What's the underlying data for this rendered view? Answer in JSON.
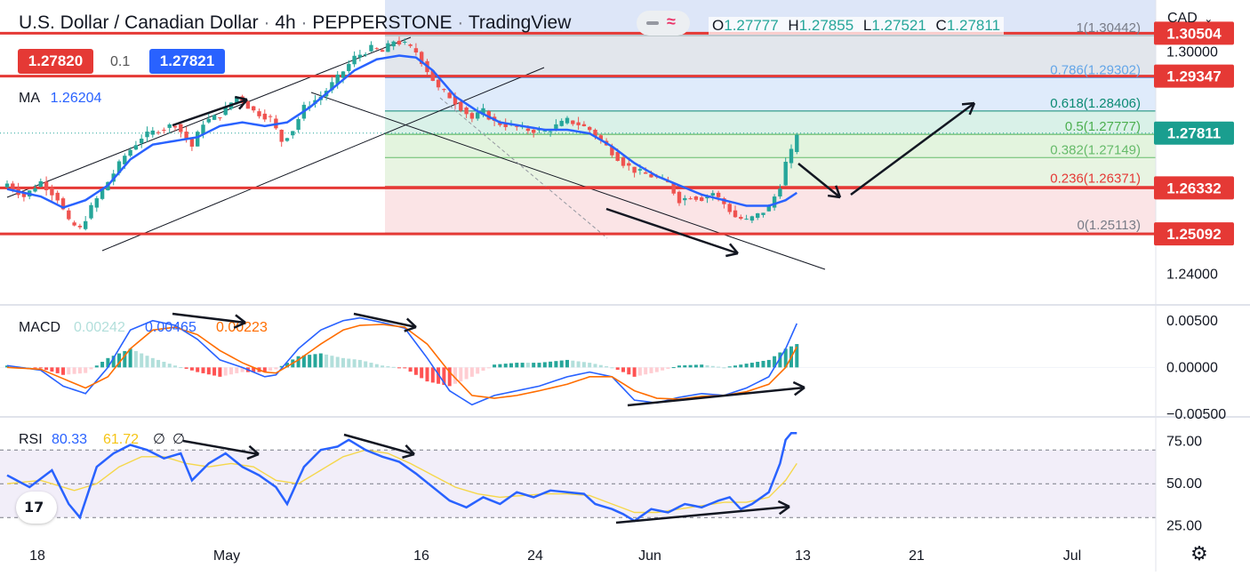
{
  "header": {
    "symbol": "U.S. Dollar / Canadian Dollar",
    "interval": "4h",
    "exchange": "PEPPERSTONE",
    "platform": "TradingView",
    "ohlc": {
      "o_label": "O",
      "o": "1.27777",
      "h_label": "H",
      "h": "1.27855",
      "l_label": "L",
      "l": "1.27521",
      "c_label": "C",
      "c": "1.27811"
    },
    "sell_price": "1.27820",
    "spread": "0.1",
    "buy_price": "1.27821",
    "ma_label": "MA",
    "ma_value": "1.26204",
    "currency": "CAD",
    "currency_icon": "chevron-down-icon"
  },
  "colors": {
    "up": "#26a69a",
    "down": "#ef5350",
    "ma": "#2962ff",
    "macd": "#2962ff",
    "signal": "#ff6d00",
    "rsi": "#2962ff",
    "rsi_ma": "#f5d74b",
    "level": "#e53935",
    "axis_badge_red": "#e53935",
    "axis_badge_green": "#1a9e8f",
    "buy_badge": "#2962ff"
  },
  "chart_data": [
    {
      "type": "candlestick",
      "title": "U.S. Dollar / Canadian Dollar · 4h · PEPPERSTONE",
      "x_ticks": [
        "18",
        "May",
        "16",
        "24",
        "Jun",
        "13",
        "21",
        "Jul"
      ],
      "y_ticks": [
        "1.30000",
        "1.24000"
      ],
      "ylim": [
        1.232,
        1.314
      ],
      "close_path": [
        [
          0,
          1.2645
        ],
        [
          3,
          1.261
        ],
        [
          6,
          1.265
        ],
        [
          9,
          1.2605
        ],
        [
          11,
          1.254
        ],
        [
          13,
          1.2522
        ],
        [
          15,
          1.258
        ],
        [
          18,
          1.265
        ],
        [
          21,
          1.272
        ],
        [
          24,
          1.277
        ],
        [
          27,
          1.279
        ],
        [
          30,
          1.2805
        ],
        [
          33,
          1.2745
        ],
        [
          35,
          1.281
        ],
        [
          38,
          1.283
        ],
        [
          41,
          1.288
        ],
        [
          44,
          1.284
        ],
        [
          47,
          1.282
        ],
        [
          49,
          1.276
        ],
        [
          51,
          1.279
        ],
        [
          53,
          1.285
        ],
        [
          56,
          1.288
        ],
        [
          59,
          1.293
        ],
        [
          62,
          1.2985
        ],
        [
          65,
          1.301
        ],
        [
          67,
          1.3
        ],
        [
          69,
          1.303
        ],
        [
          71,
          1.302
        ],
        [
          73,
          1.3
        ],
        [
          75,
          1.295
        ],
        [
          77,
          1.29
        ],
        [
          79,
          1.288
        ],
        [
          81,
          1.285
        ],
        [
          83,
          1.282
        ],
        [
          85,
          1.284
        ],
        [
          87,
          1.281
        ],
        [
          90,
          1.28
        ],
        [
          93,
          1.279
        ],
        [
          96,
          1.2785
        ],
        [
          98,
          1.28
        ],
        [
          100,
          1.2815
        ],
        [
          102,
          1.2805
        ],
        [
          104,
          1.279
        ],
        [
          106,
          1.276
        ],
        [
          108,
          1.273
        ],
        [
          110,
          1.27
        ],
        [
          112,
          1.268
        ],
        [
          114,
          1.267
        ],
        [
          116,
          1.266
        ],
        [
          118,
          1.2645
        ],
        [
          120,
          1.26
        ],
        [
          122,
          1.261
        ],
        [
          124,
          1.2605
        ],
        [
          126,
          1.262
        ],
        [
          128,
          1.259
        ],
        [
          130,
          1.2555
        ],
        [
          132,
          1.2545
        ],
        [
          134,
          1.256
        ],
        [
          136,
          1.258
        ],
        [
          138,
          1.264
        ],
        [
          139,
          1.27
        ],
        [
          140,
          1.273
        ],
        [
          141,
          1.2781
        ]
      ],
      "ma_path": [
        [
          0,
          1.263
        ],
        [
          6,
          1.261
        ],
        [
          10,
          1.258
        ],
        [
          14,
          1.26
        ],
        [
          18,
          1.264
        ],
        [
          22,
          1.271
        ],
        [
          26,
          1.275
        ],
        [
          30,
          1.276
        ],
        [
          34,
          1.277
        ],
        [
          38,
          1.28
        ],
        [
          42,
          1.281
        ],
        [
          46,
          1.28
        ],
        [
          50,
          1.281
        ],
        [
          54,
          1.285
        ],
        [
          58,
          1.29
        ],
        [
          62,
          1.295
        ],
        [
          66,
          1.298
        ],
        [
          70,
          1.299
        ],
        [
          73,
          1.2985
        ],
        [
          76,
          1.295
        ],
        [
          80,
          1.288
        ],
        [
          84,
          1.284
        ],
        [
          88,
          1.281
        ],
        [
          92,
          1.28
        ],
        [
          96,
          1.279
        ],
        [
          100,
          1.279
        ],
        [
          104,
          1.278
        ],
        [
          108,
          1.2745
        ],
        [
          112,
          1.27
        ],
        [
          116,
          1.2665
        ],
        [
          120,
          1.264
        ],
        [
          124,
          1.2615
        ],
        [
          128,
          1.26
        ],
        [
          132,
          1.2585
        ],
        [
          136,
          1.2585
        ],
        [
          139,
          1.26
        ],
        [
          141,
          1.262
        ]
      ],
      "ma_last": "1.26204",
      "levels": [
        {
          "label": "1.30504",
          "value": 1.30504
        },
        {
          "label": "1.29347",
          "value": 1.29347
        },
        {
          "label": "1.26332",
          "value": 1.26332
        },
        {
          "label": "1.25092",
          "value": 1.25092
        }
      ],
      "fibonacci": [
        {
          "label": "1(1.30442)",
          "value": 1.30442,
          "fill": "#dfe3ea"
        },
        {
          "label": "0.786(1.29302)",
          "value": 1.29302,
          "fill": "#dbe9fb",
          "text": "#64a6e8"
        },
        {
          "label": "0.618(1.28406)",
          "value": 1.28406,
          "fill": "#d5efe6",
          "text": "#0b8a73"
        },
        {
          "label": "0.5(1.27777)",
          "value": 1.27777,
          "fill": "#e0f3da",
          "text": "#4caf50"
        },
        {
          "label": "0.382(1.27149)",
          "value": 1.27149,
          "fill": "#e6f3df",
          "text": "#66bb6a"
        },
        {
          "label": "0.236(1.26371)",
          "value": 1.26371,
          "fill": "#fbe1e3",
          "text": "#e53935"
        },
        {
          "label": "0(1.25113)",
          "value": 1.25113,
          "fill": "#fbe1e3",
          "text": "#787b86"
        }
      ],
      "last_price": "1.27811",
      "last_value": 1.27811
    },
    {
      "type": "line",
      "name": "MACD",
      "legend": [
        "MACD",
        "0.00242",
        "0.00465",
        "0.00223"
      ],
      "y_ticks": [
        "0.00500",
        "0.00000",
        "−0.00500"
      ],
      "ylim": [
        -0.0052,
        0.0065
      ],
      "macd": [
        [
          0,
          0.0002
        ],
        [
          6,
          -0.0003
        ],
        [
          10,
          -0.002
        ],
        [
          14,
          -0.0028
        ],
        [
          18,
          0.0
        ],
        [
          22,
          0.004
        ],
        [
          26,
          0.005
        ],
        [
          30,
          0.0045
        ],
        [
          34,
          0.003
        ],
        [
          38,
          0.0008
        ],
        [
          42,
          0.0
        ],
        [
          46,
          -0.001
        ],
        [
          48,
          -0.0008
        ],
        [
          52,
          0.002
        ],
        [
          56,
          0.004
        ],
        [
          60,
          0.005
        ],
        [
          63,
          0.0053
        ],
        [
          67,
          0.0048
        ],
        [
          71,
          0.0042
        ],
        [
          75,
          0.001
        ],
        [
          79,
          -0.0025
        ],
        [
          83,
          -0.004
        ],
        [
          87,
          -0.003
        ],
        [
          91,
          -0.0025
        ],
        [
          95,
          -0.002
        ],
        [
          100,
          -0.001
        ],
        [
          104,
          -0.0005
        ],
        [
          108,
          -0.001
        ],
        [
          112,
          -0.0035
        ],
        [
          116,
          -0.0038
        ],
        [
          120,
          -0.0032
        ],
        [
          124,
          -0.0028
        ],
        [
          128,
          -0.003
        ],
        [
          132,
          -0.0022
        ],
        [
          136,
          -0.001
        ],
        [
          139,
          0.002
        ],
        [
          141,
          0.0047
        ]
      ],
      "signal": [
        [
          0,
          0.0
        ],
        [
          6,
          -0.0002
        ],
        [
          10,
          -0.0012
        ],
        [
          14,
          -0.0022
        ],
        [
          18,
          -0.001
        ],
        [
          22,
          0.002
        ],
        [
          26,
          0.004
        ],
        [
          30,
          0.0043
        ],
        [
          34,
          0.0035
        ],
        [
          38,
          0.0018
        ],
        [
          42,
          0.0005
        ],
        [
          46,
          -0.0005
        ],
        [
          48,
          -0.0006
        ],
        [
          52,
          0.0008
        ],
        [
          56,
          0.0025
        ],
        [
          60,
          0.004
        ],
        [
          63,
          0.0045
        ],
        [
          67,
          0.0046
        ],
        [
          71,
          0.0043
        ],
        [
          75,
          0.0025
        ],
        [
          79,
          -0.0005
        ],
        [
          83,
          -0.003
        ],
        [
          87,
          -0.0033
        ],
        [
          91,
          -0.003
        ],
        [
          95,
          -0.0025
        ],
        [
          100,
          -0.0018
        ],
        [
          104,
          -0.001
        ],
        [
          108,
          -0.001
        ],
        [
          112,
          -0.0025
        ],
        [
          116,
          -0.0033
        ],
        [
          120,
          -0.0034
        ],
        [
          124,
          -0.0031
        ],
        [
          128,
          -0.003
        ],
        [
          132,
          -0.0026
        ],
        [
          136,
          -0.0018
        ],
        [
          139,
          0.0
        ],
        [
          141,
          0.0022
        ]
      ]
    },
    {
      "type": "line",
      "name": "RSI",
      "legend": [
        "RSI",
        "80.33",
        "61.72",
        "∅",
        "∅"
      ],
      "y_ticks": [
        "75.00",
        "50.00",
        "25.00"
      ],
      "ylim": [
        18,
        88
      ],
      "upper": 70,
      "middle": 50,
      "lower": 30,
      "rsi": [
        [
          0,
          55
        ],
        [
          4,
          48
        ],
        [
          8,
          58
        ],
        [
          11,
          38
        ],
        [
          13,
          30
        ],
        [
          16,
          60
        ],
        [
          19,
          68
        ],
        [
          22,
          73
        ],
        [
          25,
          70
        ],
        [
          28,
          65
        ],
        [
          31,
          68
        ],
        [
          33,
          52
        ],
        [
          36,
          62
        ],
        [
          39,
          68
        ],
        [
          42,
          60
        ],
        [
          45,
          55
        ],
        [
          48,
          48
        ],
        [
          50,
          38
        ],
        [
          53,
          60
        ],
        [
          56,
          70
        ],
        [
          59,
          72
        ],
        [
          61,
          76
        ],
        [
          64,
          70
        ],
        [
          67,
          66
        ],
        [
          70,
          63
        ],
        [
          73,
          56
        ],
        [
          76,
          48
        ],
        [
          79,
          40
        ],
        [
          82,
          36
        ],
        [
          85,
          42
        ],
        [
          88,
          38
        ],
        [
          91,
          45
        ],
        [
          94,
          42
        ],
        [
          97,
          46
        ],
        [
          100,
          45
        ],
        [
          103,
          44
        ],
        [
          105,
          38
        ],
        [
          108,
          35
        ],
        [
          110,
          32
        ],
        [
          112,
          28
        ],
        [
          115,
          35
        ],
        [
          118,
          33
        ],
        [
          121,
          38
        ],
        [
          124,
          36
        ],
        [
          127,
          40
        ],
        [
          129,
          42
        ],
        [
          131,
          35
        ],
        [
          133,
          38
        ],
        [
          136,
          45
        ],
        [
          138,
          62
        ],
        [
          139,
          76
        ],
        [
          140,
          80
        ],
        [
          141,
          80
        ]
      ],
      "rsi_ma": [
        [
          0,
          50
        ],
        [
          6,
          52
        ],
        [
          12,
          46
        ],
        [
          16,
          50
        ],
        [
          20,
          60
        ],
        [
          24,
          66
        ],
        [
          28,
          66
        ],
        [
          32,
          62
        ],
        [
          36,
          60
        ],
        [
          40,
          62
        ],
        [
          44,
          60
        ],
        [
          48,
          52
        ],
        [
          52,
          50
        ],
        [
          56,
          58
        ],
        [
          60,
          66
        ],
        [
          64,
          70
        ],
        [
          68,
          68
        ],
        [
          72,
          62
        ],
        [
          76,
          55
        ],
        [
          80,
          48
        ],
        [
          84,
          44
        ],
        [
          88,
          42
        ],
        [
          92,
          43
        ],
        [
          96,
          44
        ],
        [
          100,
          44
        ],
        [
          104,
          43
        ],
        [
          108,
          38
        ],
        [
          112,
          33
        ],
        [
          116,
          33
        ],
        [
          120,
          35
        ],
        [
          124,
          37
        ],
        [
          128,
          39
        ],
        [
          132,
          39
        ],
        [
          136,
          42
        ],
        [
          139,
          52
        ],
        [
          141,
          62
        ]
      ]
    }
  ]
}
